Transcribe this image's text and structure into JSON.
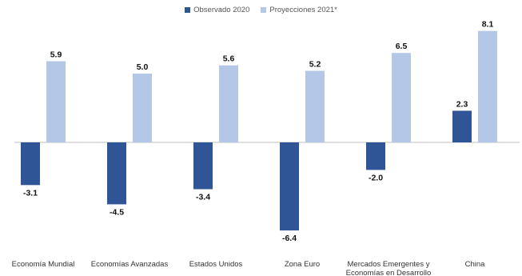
{
  "chart_data": {
    "type": "bar",
    "categories": [
      [
        "Economía Mundial"
      ],
      [
        "Economías Avanzadas"
      ],
      [
        "Estados Unidos"
      ],
      [
        "Zona Euro"
      ],
      [
        "Mercados Emergentes y",
        "Economías en Desarrollo"
      ],
      [
        "China"
      ]
    ],
    "series": [
      {
        "name": "Observado 2020",
        "color": "#2f5597",
        "values": [
          -3.1,
          -4.5,
          -3.4,
          -6.4,
          -2.0,
          2.3
        ]
      },
      {
        "name": "Proyecciones 2021*",
        "color": "#b4c7e7",
        "values": [
          5.9,
          5.0,
          5.6,
          5.2,
          6.5,
          8.1
        ]
      }
    ],
    "value_labels": [
      [
        "-3.1",
        "-4.5",
        "-3.4",
        "-6.4",
        "-2.0",
        "2.3"
      ],
      [
        "5.9",
        "5.0",
        "5.6",
        "5.2",
        "6.5",
        "8.1"
      ]
    ],
    "legend_position": "top-center",
    "grid": false,
    "ylim": [
      -6.4,
      8.1
    ]
  }
}
